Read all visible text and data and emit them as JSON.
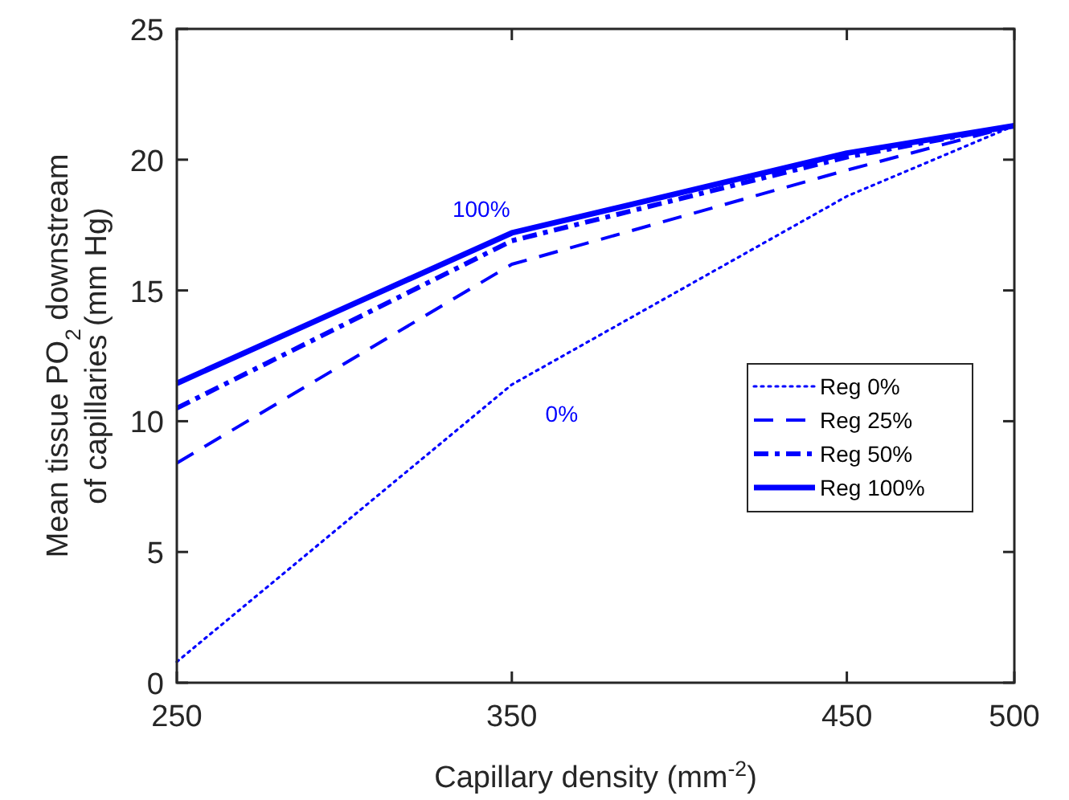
{
  "chart_data": {
    "type": "line",
    "xlabel": "Capillary density (mm$^{-2}$)",
    "ylabel": "Mean tissue PO$_{2}$ downstream of capillaries (mm Hg)",
    "x": [
      250,
      350,
      450,
      500
    ],
    "xlim": [
      250,
      500
    ],
    "xticks": [
      250,
      350,
      450,
      500
    ],
    "ylim": [
      0,
      25
    ],
    "yticks": [
      0,
      5,
      10,
      15,
      20,
      25
    ],
    "grid": false,
    "legend": "right",
    "marker": "none",
    "series": [
      {
        "name": "Reg 0%",
        "color": "#0000ff",
        "line_style": "dotted",
        "values": [
          0.8,
          11.4,
          18.6,
          21.3
        ]
      },
      {
        "name": "Reg 25%",
        "color": "#0000ff",
        "line_style": "dashed",
        "values": [
          8.4,
          16.0,
          19.6,
          21.3
        ]
      },
      {
        "name": "Reg 50%",
        "color": "#0000ff",
        "line_style": "dashdot",
        "values": [
          10.5,
          16.9,
          20.1,
          21.3
        ]
      },
      {
        "name": "Reg 100%",
        "color": "#0000ff",
        "line_style": "solid",
        "values": [
          11.45,
          17.2,
          20.25,
          21.3
        ]
      }
    ],
    "annotations": [
      "100%",
      "0%"
    ]
  }
}
